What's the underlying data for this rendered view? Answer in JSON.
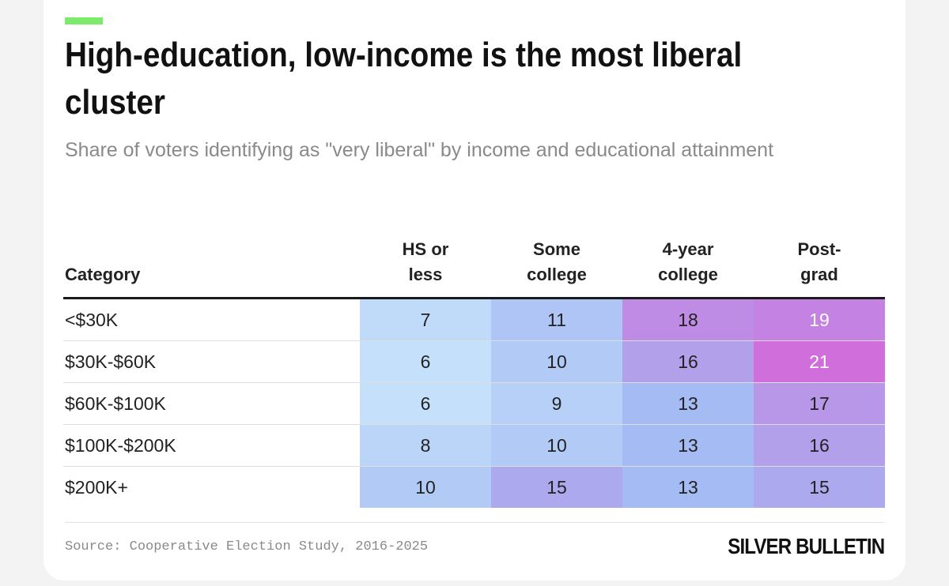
{
  "header": {
    "title": "High-education, low-income is the most liberal cluster",
    "subtitle": "Share of voters identifying as \"very liberal\"  by income and educational attainment"
  },
  "chart_data": {
    "type": "heatmap",
    "title": "High-education, low-income is the most liberal cluster",
    "subtitle": "Share of voters identifying as \"very liberal\"  by income and educational attainment",
    "row_header": "Category",
    "columns": [
      [
        "HS or",
        "less"
      ],
      [
        "Some",
        "college"
      ],
      [
        "4-year",
        "college"
      ],
      [
        "Post-",
        "grad"
      ]
    ],
    "rows": [
      "<$30K",
      "$30K-$60K",
      "$60K-$100K",
      "$100K-$200K",
      "$200K+"
    ],
    "values": [
      [
        7,
        11,
        18,
        19
      ],
      [
        6,
        10,
        16,
        21
      ],
      [
        6,
        9,
        13,
        17
      ],
      [
        8,
        10,
        13,
        16
      ],
      [
        10,
        15,
        13,
        15
      ]
    ],
    "color_scale": {
      "low": "#c4e0fa",
      "mid": "#a3b8f3",
      "high": "#d06fdc"
    }
  },
  "footer": {
    "source": "Source: Cooperative Election Study, 2016-2025",
    "logo_text": "SILVER BULLETIN"
  },
  "colors": {
    "accent": "#7cea6b",
    "text": "#111111",
    "muted": "#8a8a8a"
  }
}
